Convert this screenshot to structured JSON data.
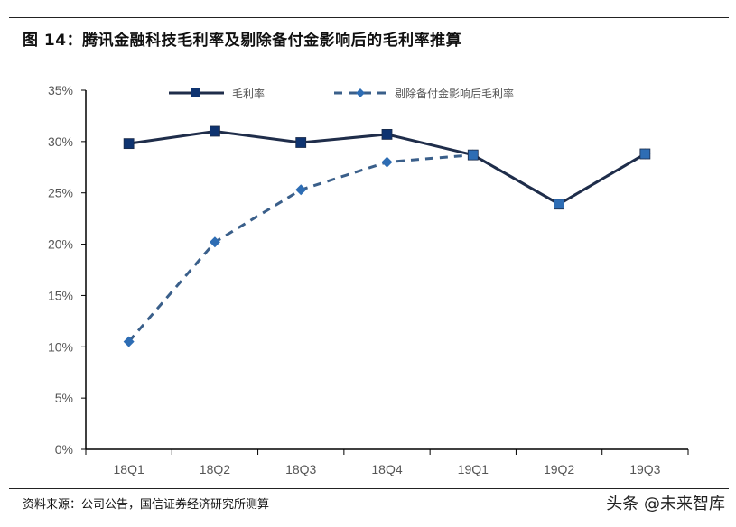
{
  "header": {
    "title": "图 14：腾讯金融科技毛利率及剔除备付金影响后的毛利率推算"
  },
  "footer": {
    "source": "资料来源：公司公告，国信证券经济研究所测算",
    "watermark": "头条 @未来智库"
  },
  "colors": {
    "series1_line": "#1f2d4a",
    "series1_marker": "#0e3370",
    "series2_line": "#3a5f8a",
    "series2_marker": "#2e6db4",
    "axis": "#000000"
  },
  "chart_data": {
    "type": "line",
    "title": "腾讯金融科技毛利率及剔除备付金影响后的毛利率推算",
    "xlabel": "",
    "ylabel": "",
    "categories": [
      "18Q1",
      "18Q2",
      "18Q3",
      "18Q4",
      "19Q1",
      "19Q2",
      "19Q3"
    ],
    "y_ticks": [
      "0%",
      "5%",
      "10%",
      "15%",
      "20%",
      "25%",
      "30%",
      "35%"
    ],
    "ylim": [
      0,
      35
    ],
    "grid": false,
    "legend_position": "top",
    "series": [
      {
        "name": "毛利率",
        "style": "solid",
        "marker": "square",
        "values": [
          29.8,
          31.0,
          29.9,
          30.7,
          28.7,
          23.9,
          28.8
        ]
      },
      {
        "name": "剔除备付金影响后毛利率",
        "style": "dashed",
        "marker": "diamond",
        "values": [
          10.5,
          20.2,
          25.3,
          28.0,
          28.7,
          23.9,
          28.8
        ]
      }
    ]
  }
}
